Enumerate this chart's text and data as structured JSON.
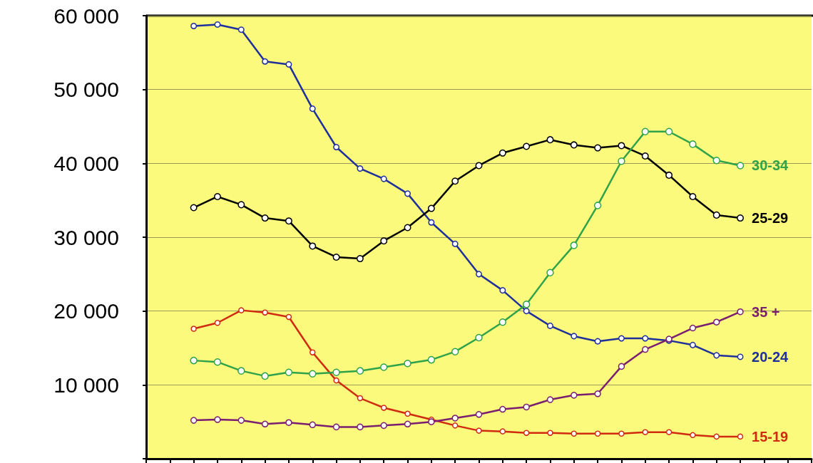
{
  "chart_data": {
    "type": "line",
    "categories": [
      null,
      null,
      null,
      null,
      null,
      null,
      null,
      null,
      null,
      null,
      null,
      null,
      null,
      null,
      null,
      null,
      null,
      null,
      null,
      null,
      null,
      null,
      null,
      null,
      null,
      null,
      null,
      null,
      null
    ],
    "series": [
      {
        "name": "30-34",
        "color": "#2fa24a",
        "values": [
          null,
          null,
          13300,
          13100,
          11900,
          11200,
          11700,
          11500,
          11700,
          11900,
          12400,
          12900,
          13400,
          14500,
          16400,
          18500,
          20900,
          25200,
          28900,
          34300,
          40300,
          44300,
          44300,
          42600,
          40400,
          39700,
          null,
          null,
          null
        ]
      },
      {
        "name": "25-29",
        "color": "#000000",
        "values": [
          null,
          null,
          34000,
          35500,
          34400,
          32600,
          32200,
          28800,
          27300,
          27100,
          29500,
          31300,
          33900,
          37600,
          39700,
          41400,
          42300,
          43200,
          42500,
          42100,
          42400,
          41000,
          38400,
          35500,
          33000,
          32600,
          null,
          null,
          null
        ]
      },
      {
        "name": "35 +",
        "color": "#7a1f70",
        "values": [
          null,
          null,
          5200,
          5300,
          5200,
          4700,
          4900,
          4600,
          4300,
          4300,
          4500,
          4700,
          5000,
          5500,
          6000,
          6700,
          7000,
          8000,
          8600,
          8800,
          12500,
          14800,
          16200,
          17700,
          18500,
          19900,
          null,
          null,
          null
        ]
      },
      {
        "name": "20-24",
        "color": "#1f2f9c",
        "values": [
          null,
          null,
          58600,
          58800,
          58100,
          53800,
          53400,
          47400,
          42200,
          39300,
          37900,
          35900,
          32000,
          29100,
          25000,
          22800,
          20000,
          18000,
          16600,
          15900,
          16300,
          16300,
          16000,
          15400,
          14000,
          13800,
          null,
          null,
          null
        ]
      },
      {
        "name": "15-19",
        "color": "#d02a10",
        "values": [
          null,
          null,
          17600,
          18400,
          20100,
          19800,
          19200,
          14400,
          10600,
          8200,
          6900,
          6100,
          5300,
          4500,
          3800,
          3700,
          3500,
          3500,
          3400,
          3400,
          3400,
          3600,
          3600,
          3200,
          3000,
          3000,
          null,
          null,
          null
        ]
      }
    ],
    "ylim": [
      0,
      60000
    ],
    "yticks": [
      {
        "value": 0,
        "label": null
      },
      {
        "value": 10000,
        "label": "10 000"
      },
      {
        "value": 20000,
        "label": "20 000"
      },
      {
        "value": 30000,
        "label": "30 000"
      },
      {
        "value": 40000,
        "label": "40 000"
      },
      {
        "value": 50000,
        "label": "50 000"
      },
      {
        "value": 60000,
        "label": "60 000"
      }
    ],
    "grid": "y",
    "tick_labels": "y",
    "marker": "circle",
    "legend": "right"
  }
}
